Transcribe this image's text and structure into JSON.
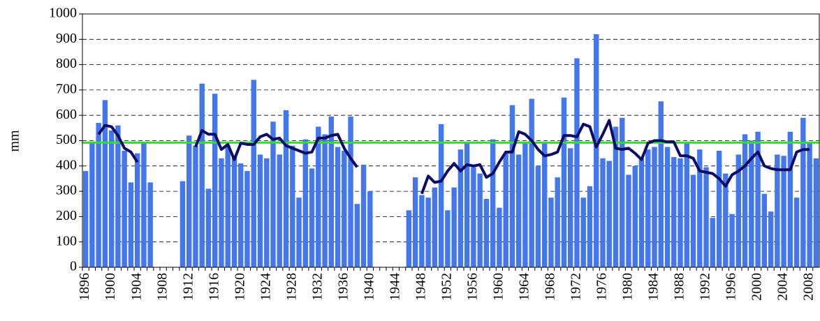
{
  "chart_data": {
    "type": "bar",
    "y_label": "mm",
    "categories": [
      "1896",
      null,
      null,
      null,
      "1900",
      null,
      null,
      null,
      "1904",
      null,
      null,
      null,
      "1908",
      null,
      null,
      null,
      "1912",
      null,
      null,
      null,
      "1916",
      null,
      null,
      null,
      "1920",
      null,
      null,
      null,
      "1924",
      null,
      null,
      null,
      "1928",
      null,
      null,
      null,
      "1932",
      null,
      null,
      null,
      "1936",
      null,
      null,
      null,
      "1940",
      null,
      null,
      null,
      "1944",
      null,
      null,
      null,
      "1948",
      null,
      null,
      null,
      "1952",
      null,
      null,
      null,
      "1956",
      null,
      null,
      null,
      "1960",
      null,
      null,
      null,
      "1964",
      null,
      null,
      null,
      "1968",
      null,
      null,
      null,
      "1972",
      null,
      null,
      null,
      "1976",
      null,
      null,
      null,
      "1980",
      null,
      null,
      null,
      "1984",
      null,
      null,
      null,
      "1988",
      null,
      null,
      null,
      "1992",
      null,
      null,
      null,
      "1996",
      null,
      null,
      null,
      "2000",
      null,
      null,
      null,
      "2004",
      null,
      null,
      null,
      "2008",
      null
    ],
    "series": [
      {
        "type": "bar",
        "color": "#4577ec",
        "values": [
          380,
          490,
          570,
          660,
          540,
          560,
          460,
          335,
          450,
          495,
          335,
          null,
          null,
          null,
          null,
          340,
          520,
          480,
          725,
          310,
          685,
          430,
          480,
          440,
          410,
          380,
          740,
          445,
          430,
          575,
          445,
          620,
          480,
          275,
          505,
          390,
          555,
          525,
          595,
          475,
          460,
          595,
          250,
          405,
          300,
          null,
          null,
          null,
          null,
          null,
          225,
          355,
          285,
          275,
          315,
          565,
          225,
          315,
          465,
          490,
          395,
          370,
          270,
          505,
          235,
          450,
          640,
          445,
          490,
          665,
          400,
          490,
          275,
          355,
          670,
          470,
          825,
          275,
          320,
          920,
          430,
          420,
          555,
          590,
          365,
          400,
          430,
          465,
          475,
          655,
          475,
          435,
          430,
          490,
          365,
          465,
          395,
          195,
          460,
          370,
          210,
          445,
          525,
          500,
          535,
          290,
          220,
          445,
          440,
          535,
          275,
          590,
          490,
          430
        ]
      },
      {
        "type": "line",
        "color": "#0c0c66",
        "values": [
          null,
          null,
          525,
          560,
          555,
          520,
          470,
          455,
          415,
          null,
          null,
          null,
          null,
          null,
          null,
          null,
          null,
          475,
          540,
          525,
          525,
          465,
          485,
          425,
          490,
          485,
          485,
          515,
          525,
          505,
          510,
          480,
          470,
          460,
          450,
          455,
          510,
          510,
          520,
          525,
          470,
          430,
          395,
          null,
          null,
          null,
          null,
          null,
          null,
          null,
          null,
          null,
          290,
          360,
          335,
          340,
          380,
          410,
          380,
          405,
          400,
          405,
          355,
          370,
          415,
          455,
          455,
          535,
          525,
          500,
          465,
          440,
          445,
          455,
          520,
          520,
          515,
          565,
          555,
          475,
          525,
          580,
          470,
          465,
          470,
          450,
          425,
          490,
          500,
          500,
          495,
          495,
          440,
          440,
          430,
          380,
          375,
          370,
          350,
          320,
          365,
          380,
          400,
          430,
          455,
          400,
          390,
          385,
          385,
          385,
          455,
          465,
          465,
          null
        ]
      }
    ],
    "reference_line": {
      "value": 492,
      "color": "#33dd33"
    },
    "ylim": [
      0,
      1000
    ],
    "yticks": [
      0,
      100,
      200,
      300,
      400,
      500,
      600,
      700,
      800,
      900,
      1000
    ],
    "grid": true
  }
}
